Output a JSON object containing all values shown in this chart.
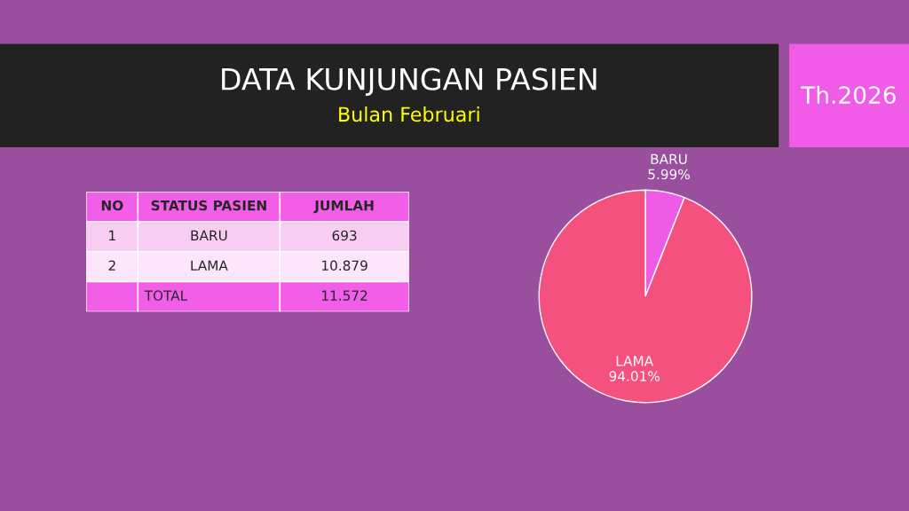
{
  "chart_data": [
    {
      "type": "other",
      "title": "DATA KUNJUNGAN PASIEN",
      "subtitle": "Bulan Februari",
      "annotations": [
        "Th.2026",
        "NO",
        "STATUS PASIEN",
        "JUMLAH",
        "1",
        "BARU",
        "693",
        "2",
        "LAMA",
        "10.879",
        "TOTAL",
        "11.572"
      ]
    },
    {
      "type": "pie",
      "categories": [
        "BARU",
        "LAMA"
      ],
      "values": [
        5.99,
        94.01
      ],
      "colors": [
        "#ee5ce6",
        "#f5517f"
      ],
      "value_labels": [
        "5.99%",
        "94.01%"
      ]
    }
  ]
}
